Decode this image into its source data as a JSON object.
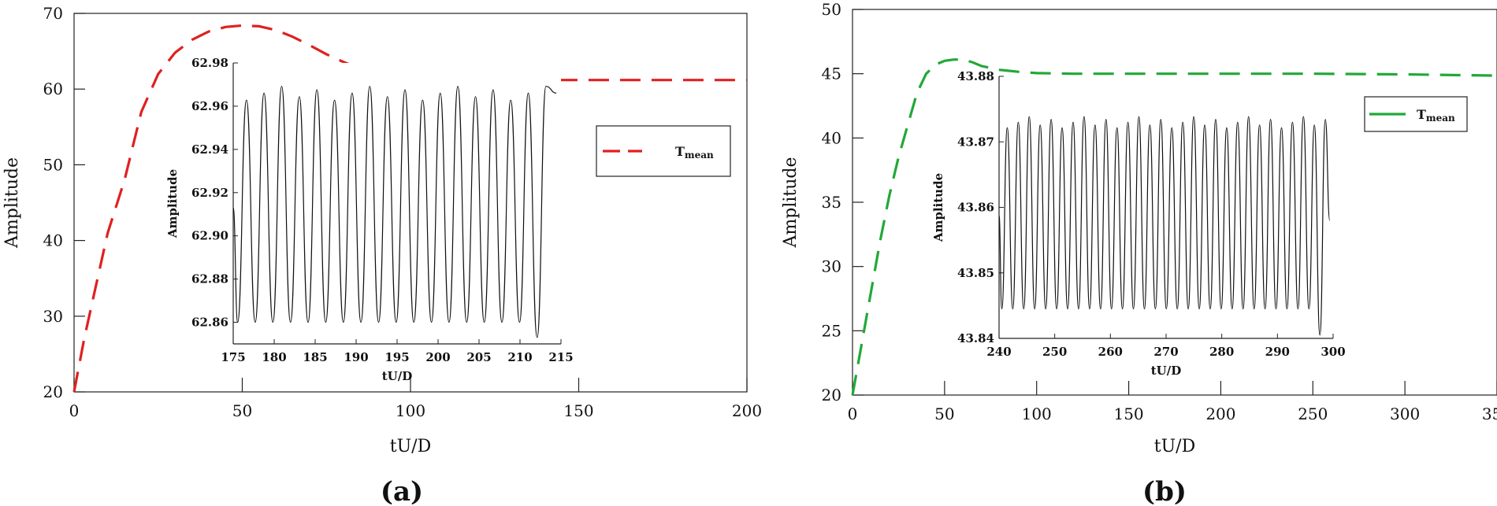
{
  "chart_data": [
    {
      "type": "line",
      "panel_label": "(a)",
      "xlabel": "tU/D",
      "ylabel": "Amplitude",
      "xlim": [
        0,
        200
      ],
      "ylim": [
        20,
        70
      ],
      "xticks": [
        0,
        50,
        100,
        150,
        200
      ],
      "yticks": [
        20,
        30,
        40,
        50,
        60,
        70
      ],
      "legend": {
        "placement": "right",
        "label_main": "T",
        "label_sub": "mean"
      },
      "series": [
        {
          "color": "#e02020",
          "style": "dashed",
          "x": [
            0,
            3,
            6,
            10,
            15,
            20,
            25,
            30,
            35,
            40,
            45,
            50,
            55,
            60,
            65,
            70,
            75,
            80,
            85,
            90,
            95,
            100,
            105,
            110,
            120,
            130,
            140,
            150,
            160,
            170,
            180,
            190,
            200
          ],
          "y": [
            20,
            27,
            33,
            41,
            48,
            57,
            62,
            64.8,
            66.5,
            67.6,
            68.2,
            68.4,
            68.3,
            67.8,
            66.9,
            65.8,
            64.6,
            63.6,
            62.7,
            62.0,
            61.6,
            61.3,
            61.2,
            61.2,
            61.2,
            61.2,
            61.2,
            61.2,
            61.2,
            61.2,
            61.2,
            61.2,
            61.2
          ]
        }
      ],
      "inset": {
        "xlabel": "tU/D",
        "ylabel": "Amplitude",
        "xlim": [
          175,
          215
        ],
        "ylim": [
          62.85,
          62.98
        ],
        "xticks": [
          175,
          180,
          185,
          190,
          195,
          200,
          205,
          210,
          215
        ],
        "yticks": [
          "62.86",
          "62.88",
          "62.90",
          "62.92",
          "62.94",
          "62.96",
          "62.98"
        ],
        "series": {
          "color": "#111111",
          "x_start": 175,
          "x_end": 214,
          "period": 2.15,
          "low": 62.86,
          "high": 62.966,
          "end_low": 62.853,
          "end_value": 62.966
        }
      }
    },
    {
      "type": "line",
      "panel_label": "(b)",
      "xlabel": "tU/D",
      "ylabel": "Amplitude",
      "xlim": [
        0,
        350
      ],
      "ylim": [
        20,
        50
      ],
      "xticks": [
        0,
        50,
        100,
        150,
        200,
        250,
        300,
        350
      ],
      "yticks": [
        20,
        25,
        30,
        35,
        40,
        45,
        50
      ],
      "legend": {
        "placement": "top-right",
        "label_main": "T",
        "label_sub": "mean"
      },
      "series": [
        {
          "color": "#22a838",
          "style": "dashed",
          "x": [
            0,
            5,
            10,
            15,
            20,
            25,
            30,
            35,
            40,
            45,
            50,
            55,
            60,
            65,
            70,
            80,
            90,
            100,
            120,
            150,
            200,
            250,
            300,
            350
          ],
          "y": [
            20,
            24,
            28,
            32,
            35.5,
            38.5,
            41,
            43.5,
            45,
            45.7,
            46.0,
            46.1,
            46.1,
            45.9,
            45.6,
            45.3,
            45.15,
            45.05,
            45.0,
            45.0,
            45.0,
            45.0,
            44.95,
            44.85
          ]
        }
      ],
      "inset": {
        "xlabel": "tU/D",
        "ylabel": "Amplitude",
        "xlim": [
          240,
          300
        ],
        "ylim": [
          43.84,
          43.88
        ],
        "xticks": [
          240,
          250,
          260,
          270,
          280,
          290,
          300
        ],
        "yticks": [
          "43.84",
          "43.85",
          "43.86",
          "43.87",
          "43.88"
        ],
        "series": {
          "color": "#111111",
          "x_start": 240,
          "x_end": 299,
          "period": 1.97,
          "low": 43.8445,
          "high": 43.873,
          "end_low": 43.8405,
          "end_value": 43.858
        }
      }
    }
  ]
}
